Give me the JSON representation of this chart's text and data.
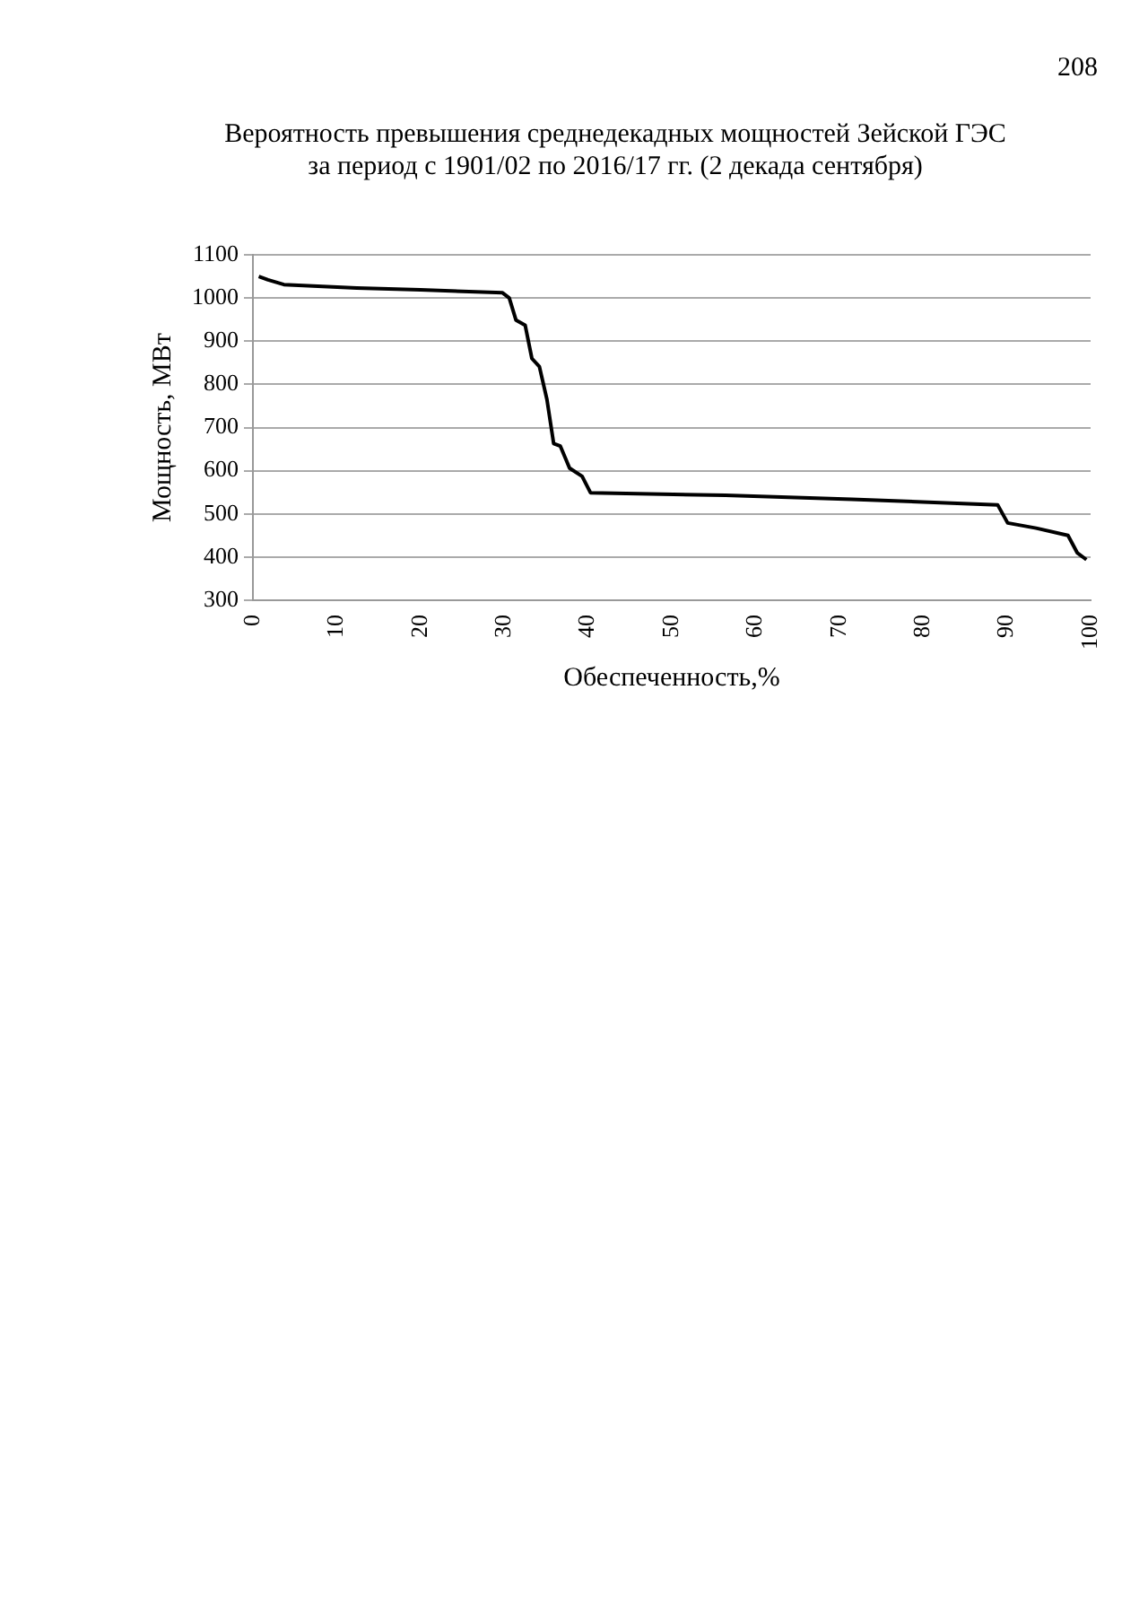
{
  "chart_data": {
    "type": "line",
    "title": "Вероятность превышения среднедекадных мощностей Зейской ГЭС\nза период с 1901/02 по 2016/17 гг. (2 декада сентября)",
    "xlabel": "Обеспеченность,%",
    "ylabel": "Мощность, МВт",
    "annotations": [
      "208"
    ],
    "x": [
      0.7,
      1.8,
      3.7,
      12.4,
      20,
      29.8,
      30.6,
      31.4,
      32.5,
      33.3,
      34.2,
      35.1,
      35.9,
      36.7,
      37.8,
      39.3,
      40.3,
      56.4,
      71.5,
      88.9,
      90.1,
      93.5,
      97.3,
      98.4,
      99.5
    ],
    "series": [
      {
        "color": "#000000",
        "values": [
          1050,
          1042,
          1031,
          1023,
          1019,
          1012,
          1000,
          949,
          937,
          860,
          841,
          765,
          663,
          657,
          606,
          587,
          549,
          543,
          534,
          521,
          479,
          467,
          450,
          410,
          394
        ]
      }
    ],
    "xlim": [
      0,
      100
    ],
    "xticks": [
      0,
      10,
      20,
      30,
      40,
      50,
      60,
      70,
      80,
      90,
      100
    ],
    "ylim": [
      300,
      1100
    ],
    "yticks": [
      300,
      400,
      500,
      600,
      700,
      800,
      900,
      1000,
      1100
    ],
    "grid": "y",
    "legend": false,
    "line_style": "solid"
  }
}
